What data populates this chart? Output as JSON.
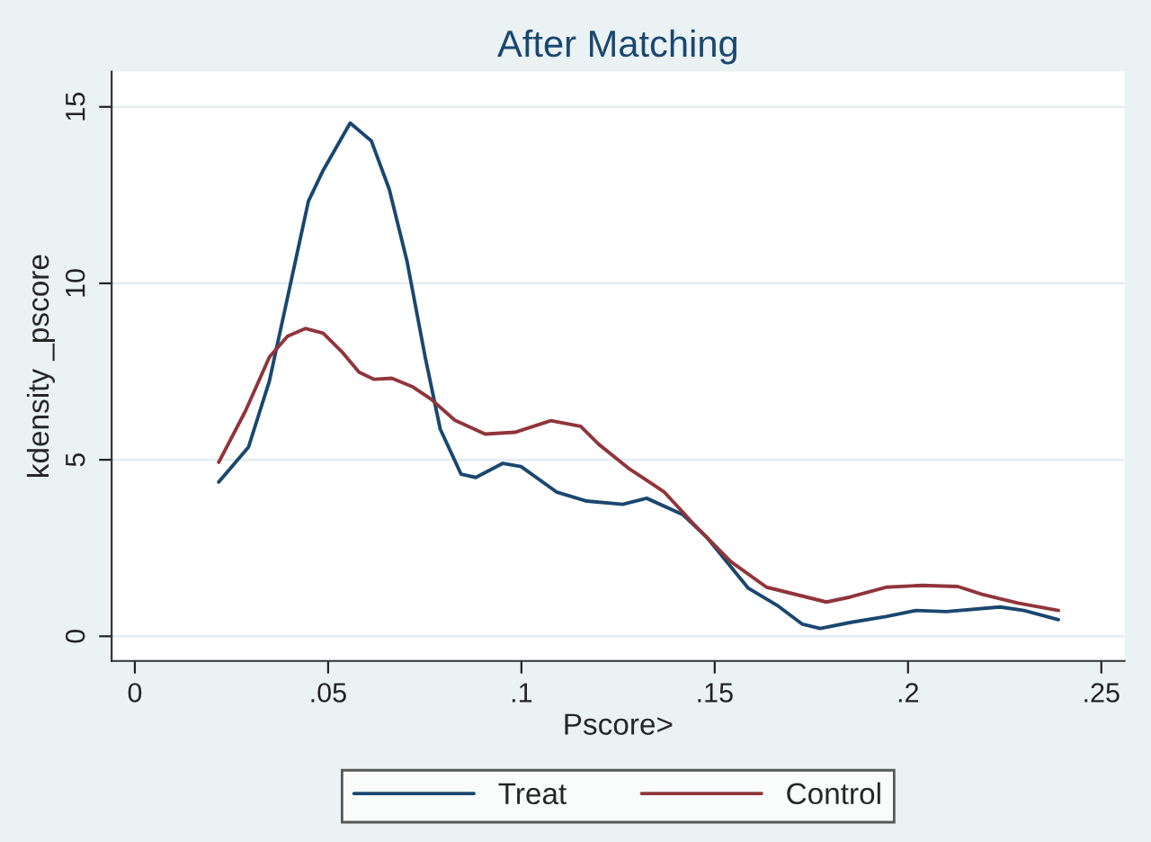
{
  "chart_data": {
    "type": "line",
    "title": "After Matching",
    "xlabel": "Pscore>",
    "ylabel": "kdensity _pscore",
    "xlim": [
      -0.006,
      0.256
    ],
    "xticks": [
      0,
      {
        "value": 0.05,
        "label": ".05"
      },
      {
        "value": 0.1,
        "label": ".1"
      },
      {
        "value": 0.15,
        "label": ".15"
      },
      {
        "value": 0.2,
        "label": ".2"
      },
      {
        "value": 0.25,
        "label": ".25"
      }
    ],
    "ylim": [
      -0.7,
      16
    ],
    "yticks": [
      0,
      5,
      10,
      15
    ],
    "grid": "y",
    "legend": "bottom",
    "line_style": "solid",
    "marker": "none",
    "series": [
      {
        "name": "Treat",
        "color": "#1a476f",
        "x": [
          0.0217,
          0.0294,
          0.0348,
          0.0395,
          0.0449,
          0.0487,
          0.0557,
          0.0612,
          0.0658,
          0.0704,
          0.0751,
          0.079,
          0.0844,
          0.0882,
          0.0952,
          0.0999,
          0.1092,
          0.1169,
          0.1262,
          0.1324,
          0.1417,
          0.1479,
          0.1587,
          0.1665,
          0.1727,
          0.1773,
          0.185,
          0.1943,
          0.2021,
          0.2099,
          0.2238,
          0.23,
          0.2389
        ],
        "values": [
          4.37,
          5.36,
          7.23,
          9.6,
          12.33,
          13.2,
          14.54,
          14.03,
          12.67,
          10.63,
          7.91,
          5.87,
          4.59,
          4.5,
          4.9,
          4.81,
          4.08,
          3.83,
          3.74,
          3.91,
          3.45,
          2.81,
          1.36,
          0.85,
          0.34,
          0.22,
          0.39,
          0.56,
          0.73,
          0.7,
          0.83,
          0.73,
          0.47
        ]
      },
      {
        "name": "Control",
        "color": "#90353b",
        "x": [
          0.0217,
          0.0286,
          0.0348,
          0.0395,
          0.0441,
          0.0487,
          0.0534,
          0.058,
          0.0619,
          0.0665,
          0.072,
          0.0766,
          0.0828,
          0.0906,
          0.0983,
          0.1076,
          0.1153,
          0.12,
          0.1277,
          0.1324,
          0.137,
          0.1448,
          0.1541,
          0.1634,
          0.1789,
          0.185,
          0.1943,
          0.2036,
          0.2129,
          0.2191,
          0.2284,
          0.2389
        ],
        "values": [
          4.93,
          6.38,
          7.91,
          8.5,
          8.72,
          8.59,
          8.08,
          7.48,
          7.28,
          7.31,
          7.06,
          6.72,
          6.12,
          5.73,
          5.78,
          6.11,
          5.95,
          5.44,
          4.76,
          4.42,
          4.08,
          3.15,
          2.12,
          1.39,
          0.97,
          1.11,
          1.39,
          1.44,
          1.41,
          1.19,
          0.94,
          0.73
        ]
      }
    ]
  }
}
